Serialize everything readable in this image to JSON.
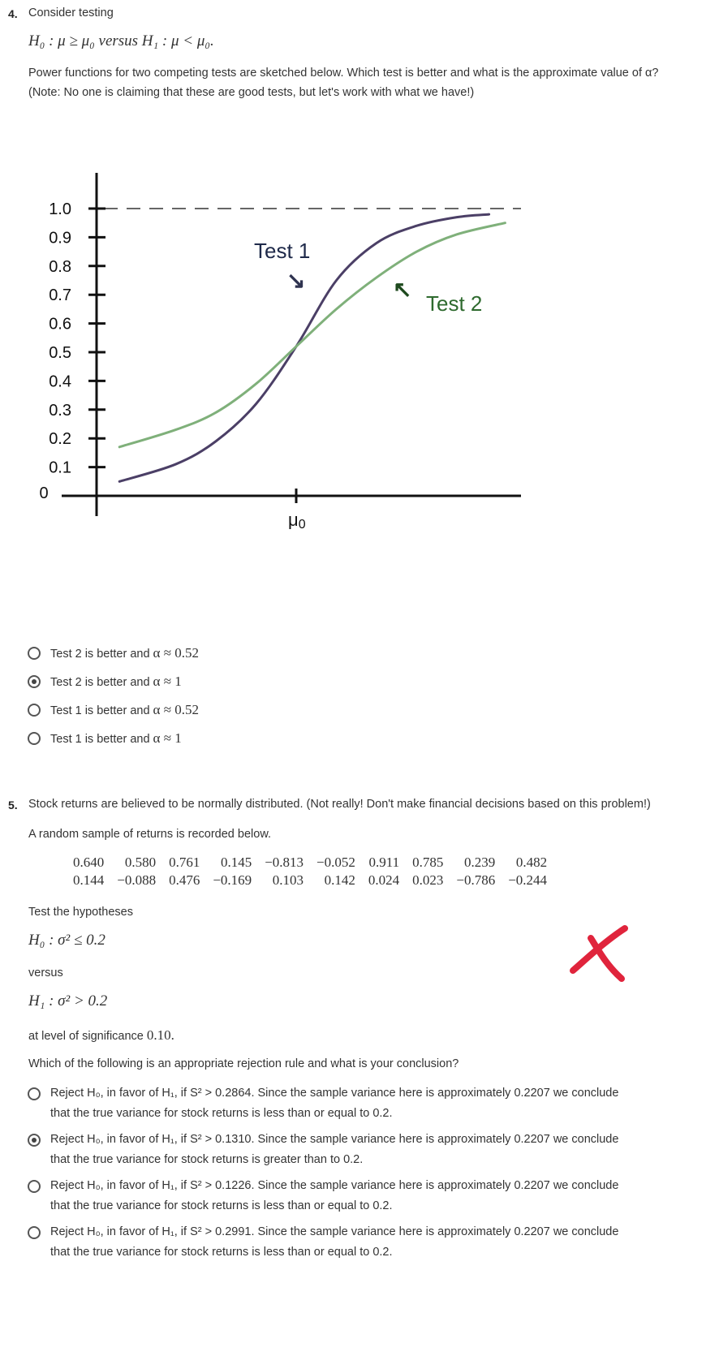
{
  "q4": {
    "number": "4.",
    "intro": "Consider testing",
    "hypotheses": "H₀ : μ ≥ μ₀  versus  H₁ : μ < μ₀.",
    "prompt_line1": "Power functions for two competing tests are sketched below. Which test is better and what is the approximate value of α?",
    "prompt_line2": "(Note: No one is claiming that these are good tests, but let's work with what we have!)",
    "options": [
      {
        "text": "Test 2 is better and",
        "value": "α ≈ 0.52",
        "selected": false
      },
      {
        "text": "Test 2 is better and",
        "value": "α ≈ 1",
        "selected": true
      },
      {
        "text": "Test 1 is better and",
        "value": "α ≈ 0.52",
        "selected": false
      },
      {
        "text": "Test 1 is better and",
        "value": "α ≈ 1",
        "selected": false
      }
    ]
  },
  "chart_data": {
    "type": "line",
    "title": "",
    "xlabel": "",
    "ylabel": "",
    "x_tick_labels": [
      "μ0"
    ],
    "y_zero_label": "0",
    "y_ticks": [
      "0.1",
      "0.2",
      "0.3",
      "0.4",
      "0.5",
      "0.6",
      "0.7",
      "0.8",
      "0.9",
      "1.0"
    ],
    "ylim": [
      0,
      1.0
    ],
    "xlim": [
      -2.5,
      2.8
    ],
    "reference_line": {
      "y": 1.0,
      "style": "dashed"
    },
    "series": [
      {
        "name": "Test 1",
        "color": "#4b3f66",
        "x": [
          -2.2,
          -1.5,
          -1.0,
          -0.5,
          0.0,
          0.5,
          1.0,
          1.5,
          2.0,
          2.4
        ],
        "y": [
          0.05,
          0.11,
          0.19,
          0.32,
          0.52,
          0.75,
          0.88,
          0.94,
          0.97,
          0.98
        ]
      },
      {
        "name": "Test 2",
        "color": "#7fb07a",
        "x": [
          -2.2,
          -1.5,
          -1.0,
          -0.5,
          0.0,
          0.5,
          1.0,
          1.5,
          2.0,
          2.6
        ],
        "y": [
          0.17,
          0.23,
          0.29,
          0.39,
          0.52,
          0.65,
          0.76,
          0.85,
          0.91,
          0.95
        ]
      }
    ],
    "annotations": [
      {
        "text": "Test 1",
        "color": "#1f2a4a",
        "arrow": "↘",
        "arrow_color": "#2f3350"
      },
      {
        "text": "Test 2",
        "color": "#2e6a2e",
        "arrow": "↖",
        "arrow_color": "#1e4a1e"
      }
    ]
  },
  "q5": {
    "number": "5.",
    "intro": "Stock returns are believed to be normally distributed. (Not really! Don't make financial decisions based on this problem!)",
    "sample_intro": "A random sample of returns is recorded below.",
    "table_rows": [
      [
        "0.640",
        "0.580",
        "0.761",
        "0.145",
        "−0.813",
        "−0.052",
        "0.911",
        "0.785",
        "0.239",
        "0.482"
      ],
      [
        "0.144",
        "−0.088",
        "0.476",
        "−0.169",
        "0.103",
        "0.142",
        "0.024",
        "0.023",
        "−0.786",
        "−0.244"
      ]
    ],
    "test_label": "Test the hypotheses",
    "h0": "H₀ : σ² ≤ 0.2",
    "versus": "versus",
    "h1": "H₁ : σ² > 0.2",
    "level_text": "at level of significance",
    "level_value": "0.10.",
    "question": "Which of the following is an appropriate rejection rule and what is your conclusion?",
    "mark_color": "#e0243c",
    "options": [
      {
        "line1": "Reject H₀, in favor of H₁, if S² > 0.2864. Since the sample variance here is approximately 0.2207 we conclude",
        "line2": "that the true variance for stock returns is less than or equal to 0.2.",
        "selected": false
      },
      {
        "line1": "Reject H₀, in favor of H₁, if S² > 0.1310. Since the sample variance here is approximately 0.2207 we conclude",
        "line2": "that the true variance for stock returns is greater than to 0.2.",
        "selected": true
      },
      {
        "line1": "Reject H₀, in favor of H₁, if S² > 0.1226. Since the sample variance here is approximately 0.2207 we conclude",
        "line2": "that the true variance for stock returns is less than or equal to 0.2.",
        "selected": false
      },
      {
        "line1": "Reject H₀, in favor of H₁, if S² > 0.2991. Since the sample variance here is approximately 0.2207 we conclude",
        "line2": "that the true variance for stock returns is less than or equal to 0.2.",
        "selected": false
      }
    ]
  }
}
